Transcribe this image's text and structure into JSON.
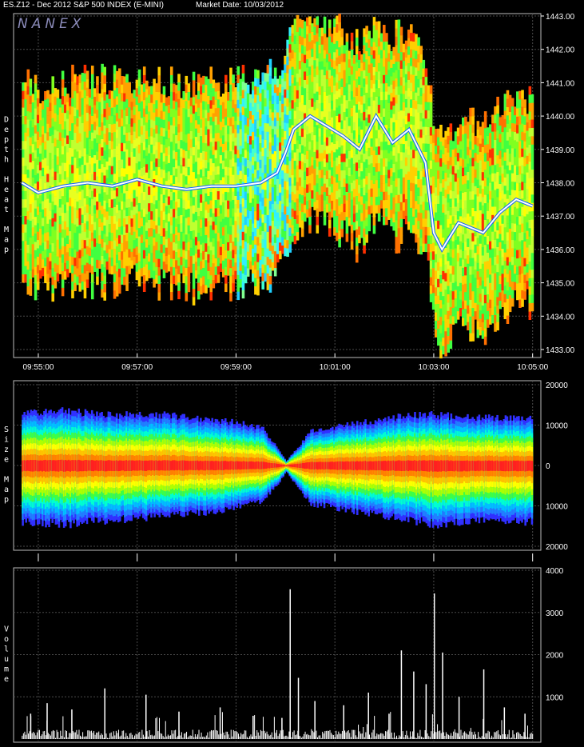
{
  "header": {
    "symbol_label": "ES.Z12 - Dec 2012 S&P 500 INDEX (E-MINI)",
    "market_date_label": "Market Date: 10/03/2012",
    "brand": "NANEX"
  },
  "colors": {
    "background": "#000000",
    "grid": "#4a4a4a",
    "axis_text": "#ffffff",
    "heat_low": "#ffff00",
    "heat_high": "#ff0000",
    "trade": "#ffffff",
    "size_outer": "#3030ff",
    "size_center": "#ff2020"
  },
  "chart_data": [
    {
      "type": "heatmap",
      "panel_label": "Depth Heat Map",
      "xlabel": "",
      "ylabel": "",
      "x_ticks": [
        "09:55:00",
        "09:57:00",
        "09:59:00",
        "10:01:00",
        "10:03:00",
        "10:05:00"
      ],
      "y_ticks": [
        "1433.00",
        "1434.00",
        "1435.00",
        "1436.00",
        "1437.00",
        "1438.00",
        "1439.00",
        "1440.00",
        "1441.00",
        "1442.00",
        "1443.00"
      ],
      "ylim": [
        1433,
        1443
      ],
      "xlim": [
        "09:54:30",
        "10:05:10"
      ],
      "grid": true,
      "series": [
        {
          "values": [
            [
              "09:54:40",
              1438.0
            ],
            [
              "09:55:00",
              1437.7
            ],
            [
              "09:55:30",
              1437.9
            ],
            [
              "09:56:00",
              1438.0
            ],
            [
              "09:56:30",
              1437.9
            ],
            [
              "09:57:00",
              1438.1
            ],
            [
              "09:57:30",
              1437.9
            ],
            [
              "09:58:00",
              1437.8
            ],
            [
              "09:58:30",
              1437.9
            ],
            [
              "09:59:00",
              1437.9
            ],
            [
              "09:59:30",
              1438.0
            ],
            [
              "09:59:50",
              1438.3
            ],
            [
              "10:00:00",
              1438.9
            ],
            [
              "10:00:10",
              1439.6
            ],
            [
              "10:00:30",
              1440.0
            ],
            [
              "10:00:50",
              1439.7
            ],
            [
              "10:01:10",
              1439.4
            ],
            [
              "10:01:30",
              1439.0
            ],
            [
              "10:01:50",
              1440.0
            ],
            [
              "10:02:10",
              1439.2
            ],
            [
              "10:02:30",
              1439.6
            ],
            [
              "10:02:50",
              1438.6
            ],
            [
              "10:03:00",
              1436.5
            ],
            [
              "10:03:10",
              1436.0
            ],
            [
              "10:03:30",
              1436.8
            ],
            [
              "10:04:00",
              1436.5
            ],
            [
              "10:04:20",
              1437.1
            ],
            [
              "10:04:40",
              1437.5
            ],
            [
              "10:05:00",
              1437.3
            ]
          ]
        }
      ]
    },
    {
      "type": "area",
      "panel_label": "Size Map",
      "xlabel": "",
      "ylabel": "",
      "y_ticks": [
        "20000",
        "10000",
        "0",
        "10000",
        "20000"
      ],
      "ylim": [
        -20000,
        20000
      ],
      "grid": true,
      "x": [
        "09:54:40",
        "09:55:30",
        "09:56:30",
        "09:57:30",
        "09:58:30",
        "09:59:30",
        "09:59:50",
        "10:00:00",
        "10:00:30",
        "10:01:00",
        "10:01:30",
        "10:02:00",
        "10:02:30",
        "10:03:00",
        "10:03:30",
        "10:04:00",
        "10:04:30",
        "10:05:00"
      ],
      "series": [
        {
          "name": "bid",
          "values": [
            13000,
            13500,
            12500,
            12500,
            11500,
            9500,
            4000,
            1000,
            8500,
            9500,
            10500,
            11500,
            12500,
            12500,
            12000,
            12000,
            11500,
            11500
          ]
        },
        {
          "name": "ask",
          "values": [
            -14000,
            -14500,
            -13500,
            -12500,
            -11500,
            -9000,
            -4500,
            -1500,
            -9500,
            -10500,
            -11500,
            -12500,
            -13500,
            -14500,
            -14000,
            -13500,
            -13500,
            -14000
          ]
        }
      ]
    },
    {
      "type": "bar",
      "panel_label": "Volume",
      "xlabel": "",
      "ylabel": "",
      "y_ticks": [
        "1000",
        "2000",
        "3000",
        "4000"
      ],
      "ylim": [
        0,
        4000
      ],
      "grid": true,
      "x": [
        "09:54:50",
        "09:55:10",
        "09:55:40",
        "09:56:20",
        "09:57:10",
        "09:57:50",
        "09:58:40",
        "09:59:20",
        "09:59:55",
        "10:00:05",
        "10:00:15",
        "10:00:35",
        "10:01:10",
        "10:01:40",
        "10:02:05",
        "10:02:20",
        "10:02:35",
        "10:02:50",
        "10:03:00",
        "10:03:10",
        "10:03:30",
        "10:04:00",
        "10:04:25",
        "10:04:50"
      ],
      "values": [
        600,
        850,
        700,
        1200,
        1050,
        650,
        750,
        550,
        500,
        3550,
        1450,
        900,
        800,
        1100,
        600,
        2100,
        1600,
        1300,
        3450,
        2050,
        1000,
        1650,
        750,
        600
      ]
    }
  ]
}
